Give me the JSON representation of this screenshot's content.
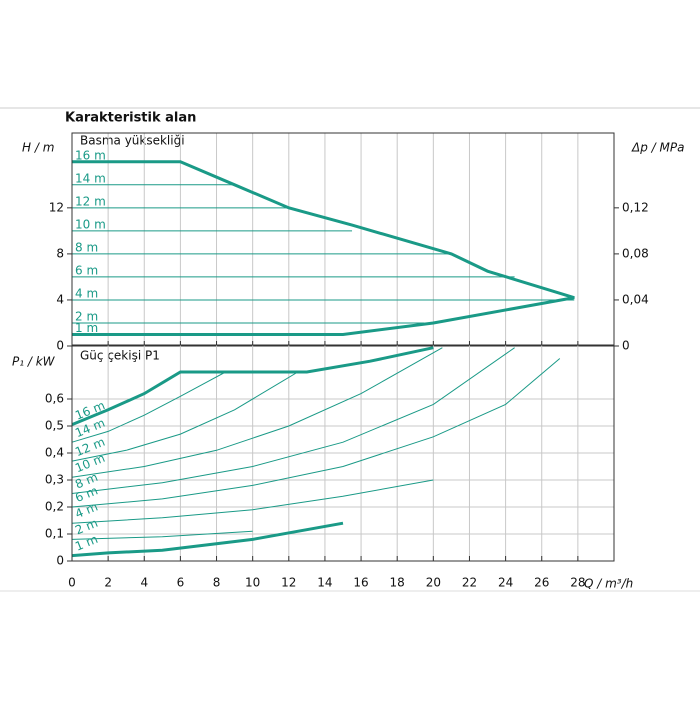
{
  "chart_data": [
    {
      "type": "line",
      "title": "Karakteristik alan",
      "subtitle": "Basma yüksekliği",
      "ylabel": "H / m",
      "y2label": "Δp / MPa",
      "xlim": [
        0,
        30
      ],
      "ylim": [
        0,
        18.5
      ],
      "y2lim": [
        0,
        0.185
      ],
      "yticks": [
        0,
        4,
        8,
        12
      ],
      "y2ticks": [
        0,
        {
          "value": 0.04,
          "label": "0,04"
        },
        {
          "value": 0.08,
          "label": "0,08"
        },
        {
          "value": 0.12,
          "label": "0,12"
        }
      ],
      "grid": true,
      "series": [
        {
          "name": "16 m",
          "color": "#1a9a87",
          "x": [
            0,
            6
          ],
          "values": [
            16,
            16
          ]
        },
        {
          "name": "14 m",
          "color": "#1a9a87",
          "x": [
            0,
            9
          ],
          "values": [
            14,
            14
          ]
        },
        {
          "name": "12 m",
          "color": "#1a9a87",
          "x": [
            0,
            12
          ],
          "values": [
            12,
            12
          ]
        },
        {
          "name": "10 m",
          "color": "#1a9a87",
          "x": [
            0,
            15.5
          ],
          "values": [
            10,
            10
          ]
        },
        {
          "name": "8 m",
          "color": "#1a9a87",
          "x": [
            0,
            21
          ],
          "values": [
            8,
            8
          ]
        },
        {
          "name": "6 m",
          "color": "#1a9a87",
          "x": [
            0,
            24.5
          ],
          "values": [
            6,
            6
          ]
        },
        {
          "name": "4 m",
          "color": "#1a9a87",
          "x": [
            0,
            27.8
          ],
          "values": [
            4,
            4
          ]
        },
        {
          "name": "2 m",
          "color": "#1a9a87",
          "x": [
            0,
            19.5
          ],
          "values": [
            2,
            2
          ]
        },
        {
          "name": "1 m",
          "color": "#1a9a87",
          "x": [
            0,
            15
          ],
          "values": [
            1,
            1
          ]
        },
        {
          "color": "#1a9a87",
          "line_width": 3,
          "x": [
            0,
            6,
            9,
            12,
            15.5,
            21,
            23,
            27.8,
            20,
            15,
            0
          ],
          "values": [
            16,
            16,
            14,
            12,
            10.5,
            8,
            6.5,
            4.2,
            2,
            1,
            1
          ]
        }
      ]
    },
    {
      "type": "line",
      "subtitle": "Güç çekişi P1",
      "ylabel": "P₁ / kW",
      "xlabel": "Q / m³/h",
      "xlim": [
        0,
        30
      ],
      "ylim": [
        0,
        0.8
      ],
      "xticks": [
        0,
        2,
        4,
        6,
        8,
        10,
        12,
        14,
        16,
        18,
        20,
        22,
        24,
        26,
        28
      ],
      "yticks": [
        0,
        {
          "value": 0.1,
          "label": "0,1"
        },
        {
          "value": 0.2,
          "label": "0,2"
        },
        {
          "value": 0.3,
          "label": "0,3"
        },
        {
          "value": 0.4,
          "label": "0,4"
        },
        {
          "value": 0.5,
          "label": "0,5"
        },
        {
          "value": 0.6,
          "label": "0,6"
        }
      ],
      "grid": true,
      "series": [
        {
          "name": "16 m",
          "color": "#1a9a87",
          "line_width": 3,
          "x": [
            0,
            2,
            4,
            6,
            13,
            16.5,
            20
          ],
          "values": [
            0.505,
            0.56,
            0.62,
            0.7,
            0.7,
            0.74,
            0.79
          ]
        },
        {
          "name": "14 m",
          "color": "#1a9a87",
          "x": [
            0,
            2,
            4,
            6,
            8.5
          ],
          "values": [
            0.44,
            0.48,
            0.54,
            0.61,
            0.7
          ]
        },
        {
          "name": "12 m",
          "color": "#1a9a87",
          "x": [
            0,
            3,
            6,
            9,
            12.5
          ],
          "values": [
            0.37,
            0.41,
            0.47,
            0.56,
            0.7
          ]
        },
        {
          "name": "10 m",
          "color": "#1a9a87",
          "x": [
            0,
            4,
            8,
            12,
            16,
            20.5
          ],
          "values": [
            0.31,
            0.35,
            0.41,
            0.5,
            0.62,
            0.79
          ]
        },
        {
          "name": "8 m",
          "color": "#1a9a87",
          "x": [
            0,
            5,
            10,
            15,
            20,
            24.5
          ],
          "values": [
            0.25,
            0.29,
            0.35,
            0.44,
            0.58,
            0.79
          ]
        },
        {
          "name": "6 m",
          "color": "#1a9a87",
          "x": [
            0,
            5,
            10,
            15,
            20,
            24,
            27
          ],
          "values": [
            0.2,
            0.23,
            0.28,
            0.35,
            0.46,
            0.58,
            0.75
          ]
        },
        {
          "name": "4 m",
          "color": "#1a9a87",
          "x": [
            0,
            5,
            10,
            15,
            20
          ],
          "values": [
            0.14,
            0.16,
            0.19,
            0.24,
            0.3
          ]
        },
        {
          "name": "2 m",
          "color": "#1a9a87",
          "x": [
            0,
            5,
            10
          ],
          "values": [
            0.08,
            0.09,
            0.11
          ]
        },
        {
          "name": "1 m",
          "color": "#1a9a87",
          "line_width": 3,
          "x": [
            0,
            2,
            5,
            10,
            15
          ],
          "values": [
            0.02,
            0.03,
            0.04,
            0.08,
            0.14
          ]
        }
      ]
    }
  ]
}
